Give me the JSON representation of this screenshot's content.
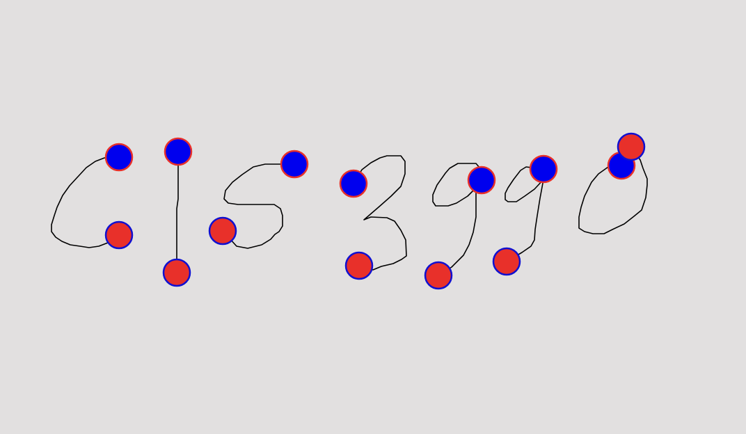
{
  "canvas": {
    "background": "#e2e0e0"
  },
  "colors": {
    "stroke": "#000000",
    "start_marker_fill": "#0000ee",
    "start_marker_border": "#e8302a",
    "end_marker_fill": "#e8302a",
    "end_marker_border": "#1010d0"
  },
  "strokes": [
    {
      "id": "stroke-1",
      "shape": "c"
    },
    {
      "id": "stroke-2",
      "shape": "vertical-line"
    },
    {
      "id": "stroke-3",
      "shape": "s"
    },
    {
      "id": "stroke-4",
      "shape": "3"
    },
    {
      "id": "stroke-5",
      "shape": "9"
    },
    {
      "id": "stroke-6",
      "shape": "9"
    },
    {
      "id": "stroke-7",
      "shape": "0"
    }
  ],
  "markers": {
    "start": "start-point",
    "end": "end-point"
  }
}
